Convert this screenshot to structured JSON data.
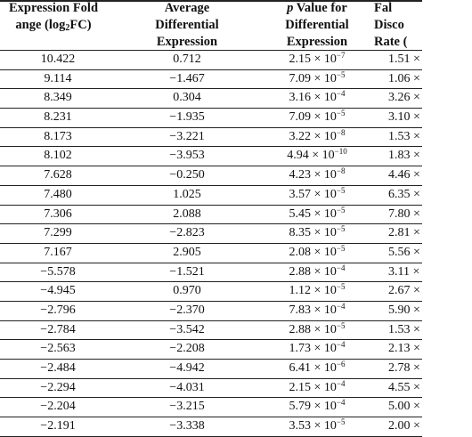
{
  "headers": {
    "col1": {
      "line1": "Expression Fold",
      "line2_pre": "ange (log",
      "line2_sub": "2",
      "line2_post": "FC)"
    },
    "col2": {
      "line1": "Average",
      "line2": "Differential",
      "line3": "Expression"
    },
    "col3": {
      "line1_p": "p",
      "line1_rest": " Value for",
      "line2": "Differential",
      "line3": "Expression"
    },
    "col4": {
      "line1": "Fal",
      "line2": "Disco",
      "line3": "Rate ("
    }
  },
  "rows": [
    {
      "fc": "10.422",
      "avg": "0.712",
      "p_base": "2.15 × 10",
      "p_exp": "−7",
      "fdr_base": "1.51 ×",
      "fdr_exp": ""
    },
    {
      "fc": "9.114",
      "avg": "−1.467",
      "p_base": "7.09 × 10",
      "p_exp": "−5",
      "fdr_base": "1.06 ×",
      "fdr_exp": ""
    },
    {
      "fc": "8.349",
      "avg": "0.304",
      "p_base": "3.16 × 10",
      "p_exp": "−4",
      "fdr_base": "3.26 ×",
      "fdr_exp": ""
    },
    {
      "fc": "8.231",
      "avg": "−1.935",
      "p_base": "7.09 × 10",
      "p_exp": "−5",
      "fdr_base": "3.10 ×",
      "fdr_exp": ""
    },
    {
      "fc": "8.173",
      "avg": "−3.221",
      "p_base": "3.22 × 10",
      "p_exp": "−8",
      "fdr_base": "1.53 ×",
      "fdr_exp": ""
    },
    {
      "fc": "8.102",
      "avg": "−3.953",
      "p_base": "4.94 × 10",
      "p_exp": "−10",
      "fdr_base": "1.83 ×",
      "fdr_exp": ""
    },
    {
      "fc": "7.628",
      "avg": "−0.250",
      "p_base": "4.23 × 10",
      "p_exp": "−8",
      "fdr_base": "4.46 ×",
      "fdr_exp": ""
    },
    {
      "fc": "7.480",
      "avg": "1.025",
      "p_base": "3.57 × 10",
      "p_exp": "−5",
      "fdr_base": "6.35 ×",
      "fdr_exp": ""
    },
    {
      "fc": "7.306",
      "avg": "2.088",
      "p_base": "5.45 × 10",
      "p_exp": "−5",
      "fdr_base": "7.80 ×",
      "fdr_exp": ""
    },
    {
      "fc": "7.299",
      "avg": "−2.823",
      "p_base": "8.35 × 10",
      "p_exp": "−5",
      "fdr_base": "2.81 ×",
      "fdr_exp": ""
    },
    {
      "fc": "7.167",
      "avg": "2.905",
      "p_base": "2.08 × 10",
      "p_exp": "−5",
      "fdr_base": "5.56 ×",
      "fdr_exp": ""
    },
    {
      "fc": "−5.578",
      "avg": "−1.521",
      "p_base": "2.88 × 10",
      "p_exp": "−4",
      "fdr_base": "3.11 ×",
      "fdr_exp": ""
    },
    {
      "fc": "−4.945",
      "avg": "0.970",
      "p_base": "1.12 × 10",
      "p_exp": "−5",
      "fdr_base": "2.67 ×",
      "fdr_exp": ""
    },
    {
      "fc": "−2.796",
      "avg": "−2.370",
      "p_base": "7.83 × 10",
      "p_exp": "−4",
      "fdr_base": "5.90 ×",
      "fdr_exp": ""
    },
    {
      "fc": "−2.784",
      "avg": "−3.542",
      "p_base": "2.88 × 10",
      "p_exp": "−5",
      "fdr_base": "1.53 ×",
      "fdr_exp": ""
    },
    {
      "fc": "−2.563",
      "avg": "−2.208",
      "p_base": "1.73 × 10",
      "p_exp": "−4",
      "fdr_base": "2.13 ×",
      "fdr_exp": ""
    },
    {
      "fc": "−2.484",
      "avg": "−4.942",
      "p_base": "6.41 × 10",
      "p_exp": "−6",
      "fdr_base": "2.78 ×",
      "fdr_exp": ""
    },
    {
      "fc": "−2.294",
      "avg": "−4.031",
      "p_base": "2.15 × 10",
      "p_exp": "−4",
      "fdr_base": "4.55 ×",
      "fdr_exp": ""
    },
    {
      "fc": "−2.204",
      "avg": "−3.215",
      "p_base": "5.79 × 10",
      "p_exp": "−4",
      "fdr_base": "5.00 ×",
      "fdr_exp": ""
    },
    {
      "fc": "−2.191",
      "avg": "−3.338",
      "p_base": "3.53 × 10",
      "p_exp": "−5",
      "fdr_base": "2.00 ×",
      "fdr_exp": ""
    }
  ]
}
